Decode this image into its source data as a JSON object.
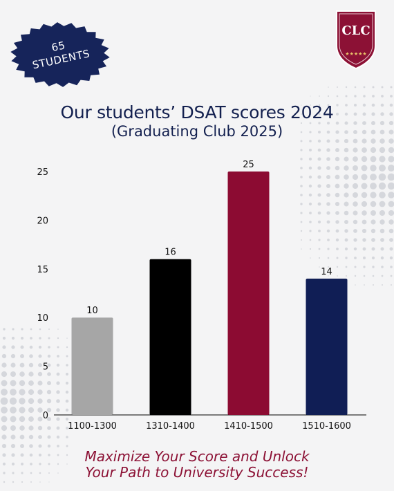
{
  "badge": {
    "line1": "65",
    "line2": "STUDENTS"
  },
  "logo": {
    "text": "CLC",
    "stars": "★★★★★"
  },
  "tagline": {
    "line1": "Maximize Your Score and Unlock",
    "line2": "Your Path to University Success!"
  },
  "colors": {
    "title": "#13204f",
    "badge": "#16245a",
    "crest": "#8c1135",
    "tagline": "#8c1135"
  },
  "chart_data": {
    "type": "bar",
    "title": "Our students’ DSAT scores 2024",
    "subtitle": "(Graduating Club 2025)",
    "categories": [
      "1100-1300",
      "1310-1400",
      "1410-1500",
      "1510-1600"
    ],
    "values": [
      10,
      16,
      25,
      14
    ],
    "bar_colors": [
      "#a6a6a6",
      "#000000",
      "#8c0b32",
      "#101e55"
    ],
    "data_labels": [
      "10",
      "16",
      "25",
      "14"
    ],
    "yticks": [
      0,
      5,
      10,
      15,
      20,
      25
    ],
    "ylim": [
      0,
      25
    ],
    "xlabel": "",
    "ylabel": "",
    "grid": false,
    "legend": "none"
  }
}
